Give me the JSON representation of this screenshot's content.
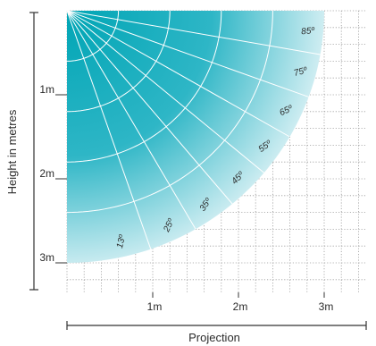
{
  "diagram": {
    "y_axis_title": "Height in metres",
    "x_axis_title": "Projection",
    "y_ticks": [
      "1m",
      "2m",
      "3m"
    ],
    "x_ticks": [
      "1m",
      "2m",
      "3m"
    ],
    "beam_angles_deg": [
      13,
      25,
      35,
      45,
      55,
      65,
      75,
      85
    ],
    "angle_labels": [
      "13º",
      "25º",
      "35º",
      "45º",
      "55º",
      "65º",
      "75º",
      "85º"
    ],
    "max_range_m": 3.0,
    "arc_radii_m": [
      0.6,
      1.2,
      1.8,
      2.4
    ],
    "colors": {
      "fill_inner": "#00a5b5",
      "fill_outer": "#d7f0f4",
      "spokes": "#ffffff",
      "grid": "#9a9a9a",
      "axis": "#333333",
      "text": "#2b2b2b"
    }
  }
}
